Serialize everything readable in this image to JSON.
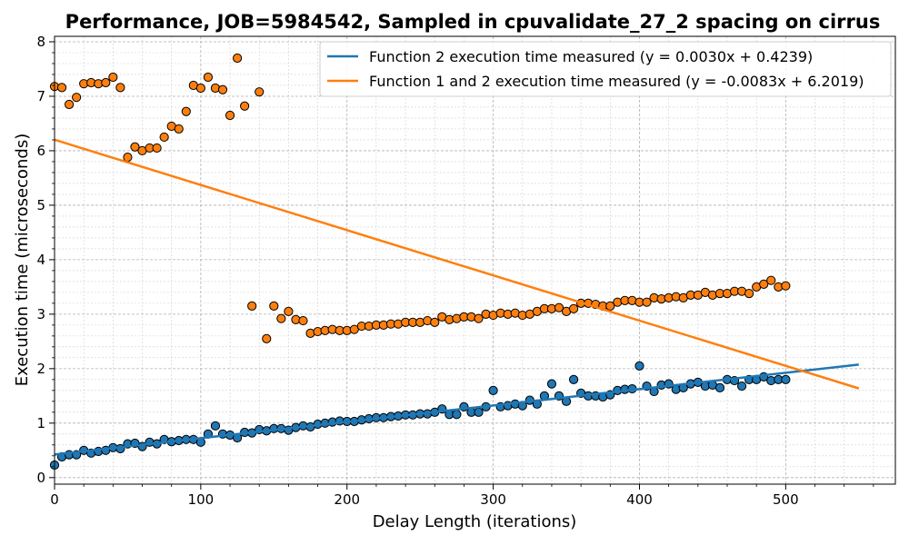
{
  "chart_data": {
    "type": "scatter",
    "title": "Performance, JOB=5984542, Sampled in cpuvalidate_27_2 spacing on cirrus",
    "xlabel": "Delay Length (iterations)",
    "ylabel": "Execution time (microseconds)",
    "xlim": [
      0,
      575
    ],
    "ylim": [
      -0.12,
      8.1
    ],
    "x_ticks": [
      "0",
      "100",
      "200",
      "300",
      "400",
      "500"
    ],
    "y_ticks": [
      "0",
      "1",
      "2",
      "3",
      "4",
      "5",
      "6",
      "7",
      "8"
    ],
    "grid": true,
    "legend_position": "top-right",
    "colors": {
      "series1": "#1f77b4",
      "series2": "#ff7f0e"
    },
    "series": [
      {
        "name": "Function 2 execution time measured (y = 0.0030x + 0.4239)",
        "color": "#1f77b4",
        "x": [
          0,
          5,
          10,
          15,
          20,
          25,
          30,
          35,
          40,
          45,
          50,
          55,
          60,
          65,
          70,
          75,
          80,
          85,
          90,
          95,
          100,
          105,
          110,
          115,
          120,
          125,
          130,
          135,
          140,
          145,
          150,
          155,
          160,
          165,
          170,
          175,
          180,
          185,
          190,
          195,
          200,
          205,
          210,
          215,
          220,
          225,
          230,
          235,
          240,
          245,
          250,
          255,
          260,
          265,
          270,
          275,
          280,
          285,
          290,
          295,
          300,
          305,
          310,
          315,
          320,
          325,
          330,
          335,
          340,
          345,
          350,
          355,
          360,
          365,
          370,
          375,
          380,
          385,
          390,
          395,
          400,
          405,
          410,
          415,
          420,
          425,
          430,
          435,
          440,
          445,
          450,
          455,
          460,
          465,
          470,
          475,
          480,
          485,
          490,
          495,
          500
        ],
        "y": [
          0.23,
          0.38,
          0.42,
          0.42,
          0.5,
          0.45,
          0.48,
          0.5,
          0.55,
          0.53,
          0.62,
          0.63,
          0.57,
          0.65,
          0.62,
          0.7,
          0.66,
          0.68,
          0.7,
          0.7,
          0.65,
          0.8,
          0.95,
          0.8,
          0.78,
          0.73,
          0.83,
          0.82,
          0.88,
          0.86,
          0.9,
          0.9,
          0.87,
          0.92,
          0.95,
          0.93,
          0.98,
          1.0,
          1.02,
          1.04,
          1.03,
          1.03,
          1.06,
          1.08,
          1.1,
          1.1,
          1.12,
          1.13,
          1.15,
          1.15,
          1.17,
          1.17,
          1.2,
          1.26,
          1.16,
          1.16,
          1.3,
          1.2,
          1.2,
          1.3,
          1.6,
          1.3,
          1.32,
          1.35,
          1.32,
          1.42,
          1.35,
          1.5,
          1.72,
          1.5,
          1.4,
          1.8,
          1.55,
          1.5,
          1.5,
          1.48,
          1.52,
          1.6,
          1.62,
          1.63,
          2.05,
          1.68,
          1.58,
          1.7,
          1.72,
          1.62,
          1.65,
          1.72,
          1.75,
          1.68,
          1.7,
          1.65,
          1.8,
          1.78,
          1.68,
          1.8,
          1.8,
          1.85,
          1.78,
          1.8,
          1.8
        ],
        "fit": {
          "slope": 0.003,
          "intercept": 0.4239,
          "x_range": [
            0,
            550
          ]
        }
      },
      {
        "name": "Function 1 and 2 execution time measured (y = -0.0083x + 6.2019)",
        "color": "#ff7f0e",
        "x": [
          0,
          5,
          10,
          15,
          20,
          25,
          30,
          35,
          40,
          45,
          50,
          55,
          60,
          65,
          70,
          75,
          80,
          85,
          90,
          95,
          100,
          105,
          110,
          115,
          120,
          125,
          130,
          135,
          140,
          145,
          150,
          155,
          160,
          165,
          170,
          175,
          180,
          185,
          190,
          195,
          200,
          205,
          210,
          215,
          220,
          225,
          230,
          235,
          240,
          245,
          250,
          255,
          260,
          265,
          270,
          275,
          280,
          285,
          290,
          295,
          300,
          305,
          310,
          315,
          320,
          325,
          330,
          335,
          340,
          345,
          350,
          355,
          360,
          365,
          370,
          375,
          380,
          385,
          390,
          395,
          400,
          405,
          410,
          415,
          420,
          425,
          430,
          435,
          440,
          445,
          450,
          455,
          460,
          465,
          470,
          475,
          480,
          485,
          490,
          495,
          500
        ],
        "y": [
          7.18,
          7.16,
          6.85,
          6.98,
          7.23,
          7.25,
          7.23,
          7.25,
          7.35,
          7.16,
          5.88,
          6.07,
          6.0,
          6.05,
          6.05,
          6.25,
          6.45,
          6.4,
          6.72,
          7.2,
          7.15,
          7.35,
          7.15,
          7.12,
          6.65,
          7.7,
          6.82,
          3.15,
          7.08,
          2.55,
          3.15,
          2.92,
          3.05,
          2.9,
          2.88,
          2.65,
          2.68,
          2.7,
          2.72,
          2.7,
          2.7,
          2.72,
          2.78,
          2.78,
          2.8,
          2.8,
          2.82,
          2.82,
          2.85,
          2.85,
          2.85,
          2.88,
          2.85,
          2.95,
          2.9,
          2.92,
          2.95,
          2.95,
          2.92,
          3.0,
          2.98,
          3.02,
          3.0,
          3.02,
          2.98,
          3.0,
          3.05,
          3.1,
          3.1,
          3.12,
          3.05,
          3.1,
          3.2,
          3.2,
          3.18,
          3.15,
          3.15,
          3.22,
          3.25,
          3.25,
          3.22,
          3.22,
          3.3,
          3.28,
          3.3,
          3.32,
          3.3,
          3.35,
          3.35,
          3.4,
          3.35,
          3.38,
          3.38,
          3.42,
          3.42,
          3.38,
          3.5,
          3.55,
          3.62,
          3.5,
          3.52
        ],
        "fit": {
          "slope": -0.0083,
          "intercept": 6.2019,
          "x_range": [
            0,
            550
          ]
        }
      }
    ]
  }
}
